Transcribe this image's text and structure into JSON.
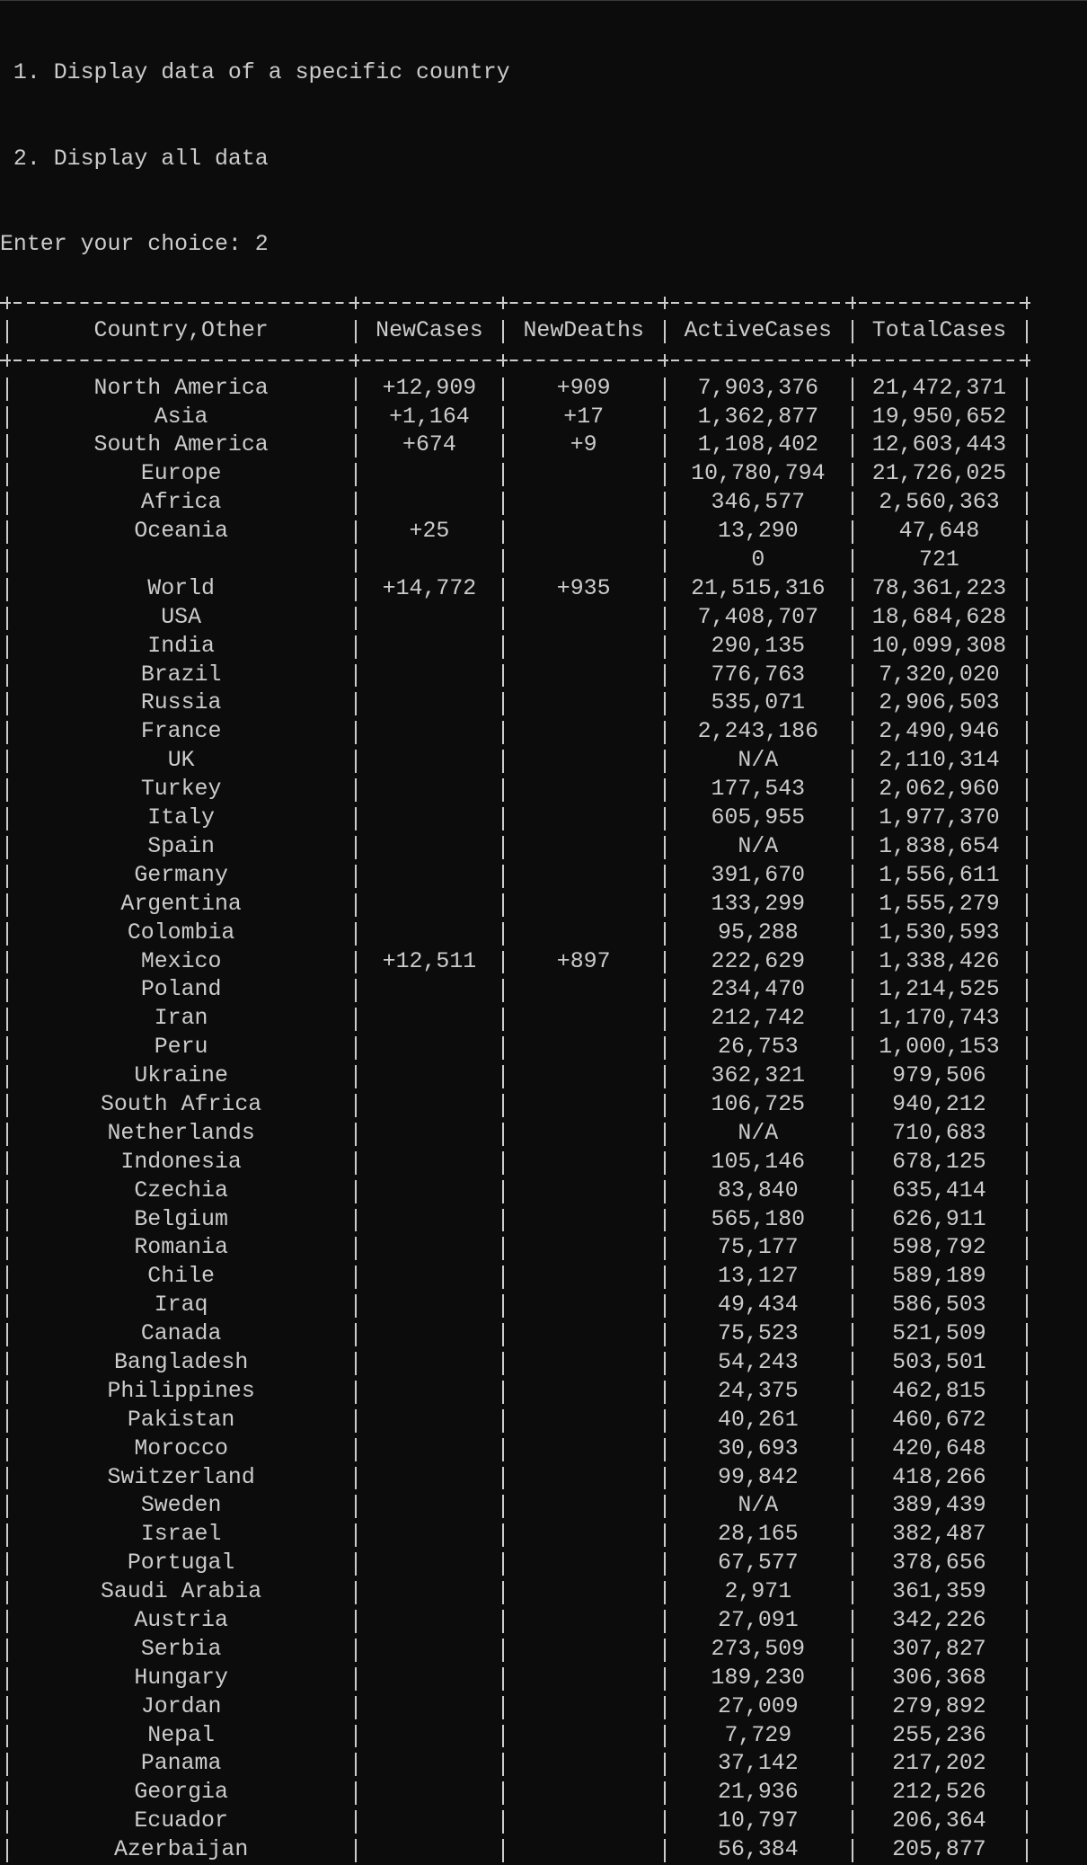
{
  "menu": [
    "1. Display data of a specific country",
    "2. Display all data"
  ],
  "prompt": "Enter your choice: 2",
  "table": {
    "headers": [
      "Country,Other",
      "NewCases",
      "NewDeaths",
      "ActiveCases",
      "TotalCases"
    ],
    "rows": [
      [
        "North America",
        "+12,909",
        "+909",
        "7,903,376",
        "21,472,371"
      ],
      [
        "Asia",
        "+1,164",
        "+17",
        "1,362,877",
        "19,950,652"
      ],
      [
        "South America",
        "+674",
        "+9",
        "1,108,402",
        "12,603,443"
      ],
      [
        "Europe",
        null,
        null,
        "10,780,794",
        "21,726,025"
      ],
      [
        "Africa",
        null,
        null,
        "346,577",
        "2,560,363"
      ],
      [
        "Oceania",
        "+25",
        null,
        "13,290",
        "47,648"
      ],
      [
        null,
        null,
        null,
        "0",
        "721"
      ],
      [
        "World",
        "+14,772",
        "+935",
        "21,515,316",
        "78,361,223"
      ],
      [
        "USA",
        null,
        null,
        "7,408,707",
        "18,684,628"
      ],
      [
        "India",
        null,
        null,
        "290,135",
        "10,099,308"
      ],
      [
        "Brazil",
        null,
        null,
        "776,763",
        "7,320,020"
      ],
      [
        "Russia",
        null,
        null,
        "535,071",
        "2,906,503"
      ],
      [
        "France",
        null,
        null,
        "2,243,186",
        "2,490,946"
      ],
      [
        "UK",
        null,
        null,
        "N/A",
        "2,110,314"
      ],
      [
        "Turkey",
        null,
        null,
        "177,543",
        "2,062,960"
      ],
      [
        "Italy",
        null,
        null,
        "605,955",
        "1,977,370"
      ],
      [
        "Spain",
        null,
        null,
        "N/A",
        "1,838,654"
      ],
      [
        "Germany",
        null,
        null,
        "391,670",
        "1,556,611"
      ],
      [
        "Argentina",
        null,
        null,
        "133,299",
        "1,555,279"
      ],
      [
        "Colombia",
        null,
        null,
        "95,288",
        "1,530,593"
      ],
      [
        "Mexico",
        "+12,511",
        "+897",
        "222,629",
        "1,338,426"
      ],
      [
        "Poland",
        null,
        null,
        "234,470",
        "1,214,525"
      ],
      [
        "Iran",
        null,
        null,
        "212,742",
        "1,170,743"
      ],
      [
        "Peru",
        null,
        null,
        "26,753",
        "1,000,153"
      ],
      [
        "Ukraine",
        null,
        null,
        "362,321",
        "979,506"
      ],
      [
        "South Africa",
        null,
        null,
        "106,725",
        "940,212"
      ],
      [
        "Netherlands",
        null,
        null,
        "N/A",
        "710,683"
      ],
      [
        "Indonesia",
        null,
        null,
        "105,146",
        "678,125"
      ],
      [
        "Czechia",
        null,
        null,
        "83,840",
        "635,414"
      ],
      [
        "Belgium",
        null,
        null,
        "565,180",
        "626,911"
      ],
      [
        "Romania",
        null,
        null,
        "75,177",
        "598,792"
      ],
      [
        "Chile",
        null,
        null,
        "13,127",
        "589,189"
      ],
      [
        "Iraq",
        null,
        null,
        "49,434",
        "586,503"
      ],
      [
        "Canada",
        null,
        null,
        "75,523",
        "521,509"
      ],
      [
        "Bangladesh",
        null,
        null,
        "54,243",
        "503,501"
      ],
      [
        "Philippines",
        null,
        null,
        "24,375",
        "462,815"
      ],
      [
        "Pakistan",
        null,
        null,
        "40,261",
        "460,672"
      ],
      [
        "Morocco",
        null,
        null,
        "30,693",
        "420,648"
      ],
      [
        "Switzerland",
        null,
        null,
        "99,842",
        "418,266"
      ],
      [
        "Sweden",
        null,
        null,
        "N/A",
        "389,439"
      ],
      [
        "Israel",
        null,
        null,
        "28,165",
        "382,487"
      ],
      [
        "Portugal",
        null,
        null,
        "67,577",
        "378,656"
      ],
      [
        "Saudi Arabia",
        null,
        null,
        "2,971",
        "361,359"
      ],
      [
        "Austria",
        null,
        null,
        "27,091",
        "342,226"
      ],
      [
        "Serbia",
        null,
        null,
        "273,509",
        "307,827"
      ],
      [
        "Hungary",
        null,
        null,
        "189,230",
        "306,368"
      ],
      [
        "Jordan",
        null,
        null,
        "27,009",
        "279,892"
      ],
      [
        "Nepal",
        null,
        null,
        "7,729",
        "255,236"
      ],
      [
        "Panama",
        null,
        null,
        "37,142",
        "217,202"
      ],
      [
        "Georgia",
        null,
        null,
        "21,936",
        "212,526"
      ],
      [
        "Ecuador",
        null,
        null,
        "10,797",
        "206,364"
      ],
      [
        "Azerbaijan",
        null,
        null,
        "56,384",
        "205,877"
      ]
    ]
  }
}
